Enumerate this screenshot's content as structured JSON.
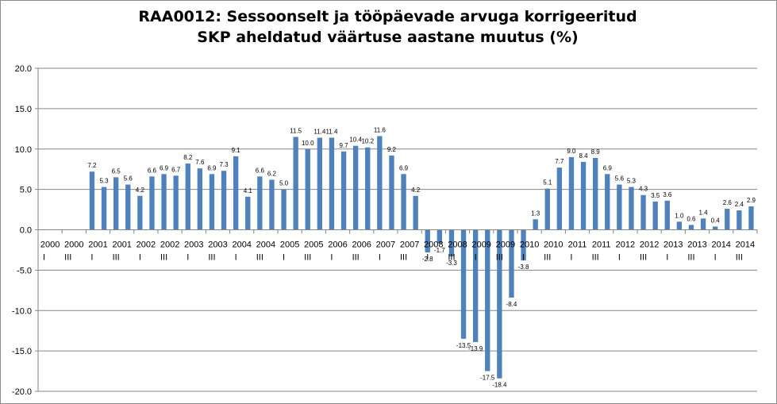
{
  "chart_data": {
    "type": "bar",
    "title_line1": "RAA0012: Sessoonselt ja tööpäevade arvuga korrigeeritud",
    "title_line2": "SKP aheldatud väärtuse aastane muutus (%)",
    "xlabel": "",
    "ylabel": "",
    "ylim": [
      -20,
      20
    ],
    "yticks": [
      "20.0",
      "15.0",
      "10.0",
      "5.0",
      "0.0",
      "-5.0",
      "-10.0",
      "-15.0",
      "-20.0"
    ],
    "grid": "horizontal",
    "bar_color": "#4f81bd",
    "gridline_color": "#868686",
    "year_labels": [
      "2000",
      "2000",
      "2001",
      "2001",
      "2002",
      "2002",
      "2003",
      "2003",
      "2004",
      "2004",
      "2005",
      "2005",
      "2006",
      "2006",
      "2007",
      "2007",
      "2008",
      "2008",
      "2009",
      "2009",
      "2010",
      "2010",
      "2011",
      "2011",
      "2012",
      "2012",
      "2013",
      "2013",
      "2014",
      "2014"
    ],
    "quarter_labels": [
      "I",
      "III"
    ],
    "values": [
      null,
      null,
      null,
      null,
      7.2,
      5.3,
      6.5,
      5.6,
      4.2,
      6.6,
      6.9,
      6.7,
      8.2,
      7.6,
      6.9,
      7.3,
      9.1,
      4.1,
      6.6,
      6.2,
      5.0,
      11.5,
      10.0,
      11.4,
      11.4,
      9.7,
      10.4,
      10.2,
      11.6,
      9.2,
      6.9,
      4.2,
      -2.8,
      -1.7,
      -3.3,
      -13.5,
      -13.9,
      -17.5,
      -18.4,
      -8.4,
      -3.8,
      1.3,
      5.1,
      7.7,
      9.0,
      8.4,
      8.9,
      6.9,
      5.6,
      5.3,
      4.3,
      3.5,
      3.6,
      1.0,
      0.6,
      1.4,
      0.4,
      2.6,
      2.4,
      2.9
    ],
    "data_labels": [
      "",
      "",
      "",
      "",
      "7.2",
      "5.3",
      "6.5",
      "5.6",
      "4.2",
      "6.6",
      "6.9",
      "6.7",
      "8.2",
      "7.6",
      "6.9",
      "7.3",
      "9.1",
      "4.1",
      "6.6",
      "6.2",
      "5.0",
      "11.5",
      "10.0",
      "11.4",
      "11.4",
      "9.7",
      "10.4",
      "10.2",
      "11.6",
      "9.2",
      "6.9",
      "4.2",
      "-2.8",
      "-1.7",
      "-3.3",
      "-13.5",
      "-13.9",
      "-17.5",
      "-18.4",
      "-8.4",
      "-3.8",
      "1.3",
      "5.1",
      "7.7",
      "9.0",
      "8.4",
      "8.9",
      "6.9",
      "5.6",
      "5.3",
      "4.3",
      "3.5",
      "3.6",
      "1.0",
      "0.6",
      "1.4",
      "0.4",
      "2.6",
      "2.4",
      "2.9"
    ]
  }
}
